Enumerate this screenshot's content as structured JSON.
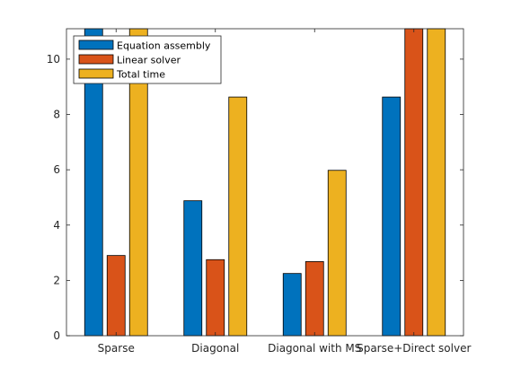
{
  "chart_data": {
    "type": "bar",
    "categories": [
      "Sparse",
      "Diagonal",
      "Diagonal with MS",
      "Sparse+Direct solver"
    ],
    "series": [
      {
        "name": "Equation assembly",
        "color": "#0072BD",
        "values": [
          11.3,
          4.88,
          2.25,
          8.63
        ]
      },
      {
        "name": "Linear solver",
        "color": "#D95319",
        "values": [
          2.9,
          2.75,
          2.68,
          11.3
        ]
      },
      {
        "name": "Total time",
        "color": "#EDB120",
        "values": [
          11.3,
          8.63,
          5.98,
          11.3
        ]
      }
    ],
    "ylim": [
      0,
      11.1
    ],
    "yticks": [
      0,
      2,
      4,
      6,
      8,
      10
    ],
    "ytick_labels": [
      "0",
      "2",
      "4",
      "6",
      "8",
      "10"
    ],
    "grid": false,
    "legend_position": "top-left"
  }
}
